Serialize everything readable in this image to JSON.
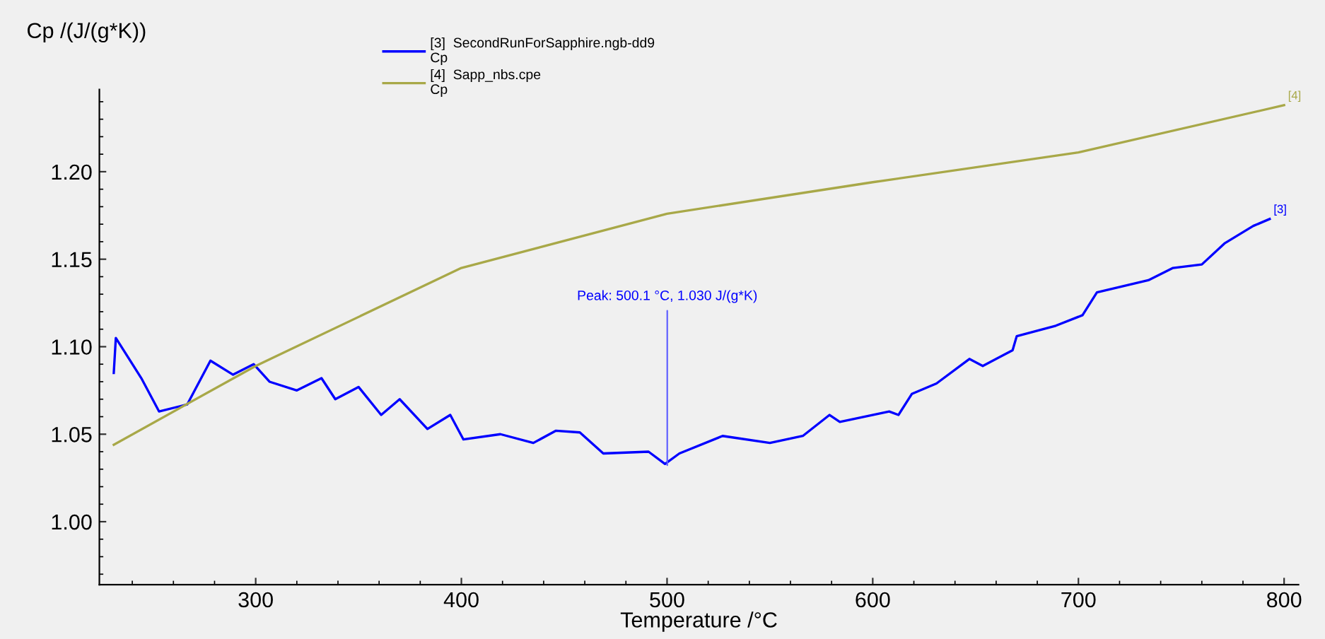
{
  "chart_data": {
    "type": "line",
    "xlabel": "Temperature /°C",
    "ylabel": "Cp /(J/(g*K))",
    "xlim": [
      224,
      807
    ],
    "ylim": [
      0.964,
      1.247
    ],
    "xticks": [
      300,
      400,
      500,
      600,
      700,
      800
    ],
    "yticks": [
      {
        "value": 1.0,
        "label": "1.00"
      },
      1.05,
      {
        "value": 1.1,
        "label": "1.10"
      },
      1.15,
      {
        "value": 1.2,
        "label": "1.20"
      }
    ],
    "grid": false,
    "legend": "top",
    "marker": "none",
    "line_style": "solid",
    "series": [
      {
        "name": "[3]  SecondRunForSapphire.ngb-dd9\nCp",
        "color": "#0000ff",
        "x": [
          231,
          232,
          244.4,
          253,
          266.7,
          278,
          289,
          299,
          306.7,
          320,
          332,
          338.7,
          350,
          361,
          370,
          383.5,
          394.6,
          401,
          419,
          435,
          446,
          457.6,
          469,
          491,
          499,
          506,
          527,
          550,
          566,
          579,
          584,
          608,
          612.5,
          619,
          631,
          647,
          653.5,
          668,
          670,
          689,
          702,
          709,
          734,
          746,
          760,
          771,
          785,
          793
        ],
        "values": [
          1.085,
          1.105,
          1.082,
          1.063,
          1.067,
          1.092,
          1.084,
          1.09,
          1.08,
          1.075,
          1.082,
          1.07,
          1.077,
          1.061,
          1.07,
          1.053,
          1.061,
          1.047,
          1.05,
          1.045,
          1.052,
          1.051,
          1.039,
          1.04,
          1.033,
          1.039,
          1.049,
          1.045,
          1.049,
          1.061,
          1.057,
          1.063,
          1.061,
          1.073,
          1.079,
          1.093,
          1.089,
          1.098,
          1.106,
          1.112,
          1.118,
          1.131,
          1.138,
          1.145,
          1.147,
          1.159,
          1.169,
          1.173
        ]
      },
      {
        "name": "[4]  Sapp_nbs.cpe\nCp",
        "color": "#a8a848",
        "x": [
          231,
          300,
          400,
          500,
          600,
          700,
          800
        ],
        "values": [
          1.044,
          1.089,
          1.145,
          1.176,
          1.194,
          1.211,
          1.238
        ]
      }
    ],
    "annotations": [
      {
        "text": "Peak: 500.1 °C, 1.030 J/(g*K)",
        "x": 500.1,
        "y": 1.03
      },
      {
        "text": "[3]",
        "x": 793,
        "y": 1.173
      },
      {
        "text": "[4]",
        "x": 800,
        "y": 1.238
      }
    ]
  }
}
